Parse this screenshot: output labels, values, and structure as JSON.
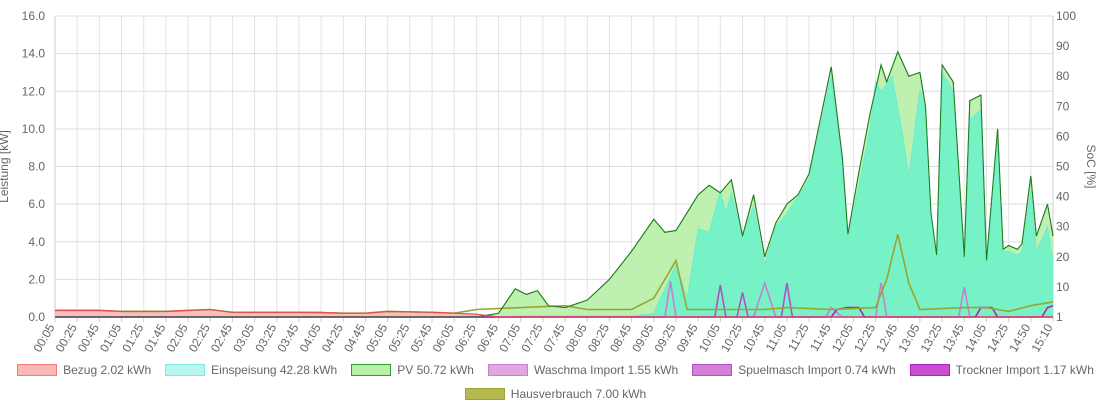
{
  "chart_data": {
    "type": "line",
    "x_axis": {
      "tick_labels": [
        "00:05",
        "00:25",
        "00:45",
        "01:05",
        "01:25",
        "01:45",
        "02:05",
        "02:25",
        "02:45",
        "03:05",
        "03:25",
        "03:45",
        "04:05",
        "04:25",
        "04:45",
        "05:05",
        "05:25",
        "05:45",
        "06:05",
        "06:25",
        "06:45",
        "07:05",
        "07:25",
        "07:45",
        "08:05",
        "08:25",
        "08:45",
        "09:05",
        "09:25",
        "09:45",
        "10:05",
        "10:25",
        "10:45",
        "11:05",
        "11:25",
        "11:45",
        "12:05",
        "12:25",
        "12:45",
        "13:05",
        "13:25",
        "13:45",
        "14:05",
        "14:25",
        "14:50",
        "15:10"
      ]
    },
    "y_left": {
      "label": "Leistung [kW]",
      "ylim": [
        0,
        16
      ],
      "tick_labels": [
        "0.0",
        "2.0",
        "4.0",
        "6.0",
        "8.0",
        "10.0",
        "12.0",
        "14.0",
        "16.0"
      ]
    },
    "y_right": {
      "label": "SoC [%]",
      "tick_labels": [
        "1",
        "10",
        "20",
        "30",
        "40",
        "50",
        "60",
        "70",
        "80",
        "90",
        "100"
      ]
    },
    "grid": true,
    "legend_position": "bottom",
    "series": [
      {
        "name": "Bezug 2.02 kWh",
        "color": "#f47c7c",
        "fill": "#f9b8b4",
        "type": "area",
        "points": [
          [
            "00:05",
            0.35
          ],
          [
            "00:45",
            0.35
          ],
          [
            "01:05",
            0.3
          ],
          [
            "01:45",
            0.3
          ],
          [
            "02:05",
            0.35
          ],
          [
            "02:25",
            0.4
          ],
          [
            "02:45",
            0.25
          ],
          [
            "03:05",
            0.25
          ],
          [
            "03:45",
            0.25
          ],
          [
            "04:05",
            0.25
          ],
          [
            "04:25",
            0.2
          ],
          [
            "04:45",
            0.2
          ],
          [
            "05:05",
            0.3
          ],
          [
            "05:45",
            0.25
          ],
          [
            "06:05",
            0.2
          ],
          [
            "06:25",
            0.15
          ],
          [
            "06:45",
            0.0
          ],
          [
            "15:10",
            0.0
          ]
        ]
      },
      {
        "name": "Einspeisung 42.28 kWh",
        "color": "#7de8e2",
        "fill": "#b9f6f0",
        "type": "area",
        "points": [
          [
            "00:05",
            0
          ],
          [
            "06:45",
            0
          ],
          [
            "07:05",
            0.05
          ],
          [
            "08:45",
            0.05
          ],
          [
            "09:05",
            0.2
          ],
          [
            "09:25",
            2.8
          ],
          [
            "09:35",
            1.0
          ],
          [
            "09:45",
            4.7
          ],
          [
            "09:55",
            4.5
          ],
          [
            "10:05",
            6.7
          ],
          [
            "10:10",
            5.5
          ],
          [
            "10:15",
            6.6
          ],
          [
            "10:25",
            4.3
          ],
          [
            "10:35",
            5.9
          ],
          [
            "10:45",
            2.8
          ],
          [
            "10:55",
            4.8
          ],
          [
            "11:05",
            5.5
          ],
          [
            "11:15",
            6.4
          ],
          [
            "11:25",
            7.3
          ],
          [
            "11:45",
            12.8
          ],
          [
            "11:55",
            8.0
          ],
          [
            "12:00",
            4.2
          ],
          [
            "12:10",
            7.0
          ],
          [
            "12:20",
            10.0
          ],
          [
            "12:25",
            12.5
          ],
          [
            "12:30",
            12.0
          ],
          [
            "12:40",
            12.8
          ],
          [
            "12:50",
            9.5
          ],
          [
            "12:55",
            7.5
          ],
          [
            "13:05",
            12.1
          ],
          [
            "13:10",
            11.0
          ],
          [
            "13:15",
            5.5
          ],
          [
            "13:20",
            3.2
          ],
          [
            "13:25",
            13.0
          ],
          [
            "13:35",
            12.0
          ],
          [
            "13:45",
            3.2
          ],
          [
            "13:50",
            10.5
          ],
          [
            "14:00",
            11.0
          ],
          [
            "14:05",
            2.8
          ],
          [
            "14:15",
            9.6
          ],
          [
            "14:20",
            3.5
          ],
          [
            "14:25",
            3.5
          ],
          [
            "14:35",
            3.3
          ],
          [
            "14:40",
            3.5
          ],
          [
            "14:50",
            6.7
          ],
          [
            "14:55",
            3.5
          ],
          [
            "15:05",
            4.8
          ],
          [
            "15:10",
            3.0
          ]
        ]
      },
      {
        "name": "PV 50.72 kWh",
        "color": "#2e9e2e",
        "fill": "#b7f0a6",
        "type": "area",
        "points": [
          [
            "00:05",
            0
          ],
          [
            "06:25",
            0
          ],
          [
            "06:45",
            0.2
          ],
          [
            "07:00",
            1.5
          ],
          [
            "07:10",
            1.2
          ],
          [
            "07:20",
            1.4
          ],
          [
            "07:30",
            0.6
          ],
          [
            "07:45",
            0.5
          ],
          [
            "08:05",
            0.9
          ],
          [
            "08:25",
            2.0
          ],
          [
            "08:45",
            3.5
          ],
          [
            "09:05",
            5.2
          ],
          [
            "09:15",
            4.5
          ],
          [
            "09:25",
            4.6
          ],
          [
            "09:45",
            6.5
          ],
          [
            "09:55",
            7.0
          ],
          [
            "10:05",
            6.6
          ],
          [
            "10:15",
            7.3
          ],
          [
            "10:25",
            4.3
          ],
          [
            "10:35",
            6.5
          ],
          [
            "10:45",
            3.2
          ],
          [
            "10:55",
            5.0
          ],
          [
            "11:05",
            6.0
          ],
          [
            "11:15",
            6.5
          ],
          [
            "11:25",
            7.6
          ],
          [
            "11:45",
            13.3
          ],
          [
            "11:55",
            8.5
          ],
          [
            "12:00",
            4.4
          ],
          [
            "12:10",
            7.7
          ],
          [
            "12:20",
            10.8
          ],
          [
            "12:30",
            13.4
          ],
          [
            "12:35",
            12.5
          ],
          [
            "12:45",
            14.1
          ],
          [
            "12:55",
            12.8
          ],
          [
            "13:05",
            13.0
          ],
          [
            "13:10",
            11.2
          ],
          [
            "13:15",
            5.5
          ],
          [
            "13:20",
            3.3
          ],
          [
            "13:25",
            13.4
          ],
          [
            "13:35",
            12.5
          ],
          [
            "13:45",
            3.2
          ],
          [
            "13:50",
            11.5
          ],
          [
            "14:00",
            11.8
          ],
          [
            "14:05",
            3.0
          ],
          [
            "14:15",
            10.0
          ],
          [
            "14:20",
            3.6
          ],
          [
            "14:25",
            3.8
          ],
          [
            "14:35",
            3.6
          ],
          [
            "14:40",
            3.9
          ],
          [
            "14:50",
            7.5
          ],
          [
            "14:55",
            4.3
          ],
          [
            "15:05",
            6.0
          ],
          [
            "15:10",
            4.3
          ]
        ]
      },
      {
        "name": "Waschma Import 1.55 kWh",
        "color": "#c77fd0",
        "fill": "#e0a6df",
        "type": "line",
        "points": [
          [
            "00:05",
            0
          ],
          [
            "09:15",
            0
          ],
          [
            "09:20",
            1.9
          ],
          [
            "09:25",
            0
          ],
          [
            "10:35",
            0
          ],
          [
            "10:45",
            1.8
          ],
          [
            "10:55",
            0
          ],
          [
            "11:40",
            0
          ],
          [
            "11:45",
            0.5
          ],
          [
            "11:55",
            0
          ],
          [
            "12:25",
            0
          ],
          [
            "12:30",
            1.8
          ],
          [
            "12:35",
            0
          ],
          [
            "13:40",
            0
          ],
          [
            "13:45",
            1.6
          ],
          [
            "13:50",
            0
          ],
          [
            "15:10",
            0
          ]
        ]
      },
      {
        "name": "Spuelmasch Import 0.74 kWh",
        "color": "#b050c8",
        "fill": "#d27fd6",
        "type": "line",
        "points": [
          [
            "00:05",
            0
          ],
          [
            "10:00",
            0
          ],
          [
            "10:05",
            1.7
          ],
          [
            "10:10",
            0
          ],
          [
            "10:20",
            0
          ],
          [
            "10:25",
            1.3
          ],
          [
            "10:30",
            0
          ],
          [
            "11:00",
            0
          ],
          [
            "11:05",
            1.8
          ],
          [
            "11:10",
            0
          ],
          [
            "15:10",
            0
          ]
        ]
      },
      {
        "name": "Trockner Import 1.17 kWh",
        "color": "#b020c0",
        "fill": "#c94ed0",
        "type": "line",
        "points": [
          [
            "00:05",
            0
          ],
          [
            "11:45",
            0
          ],
          [
            "11:50",
            0.4
          ],
          [
            "12:00",
            0.5
          ],
          [
            "12:10",
            0.5
          ],
          [
            "12:15",
            0
          ],
          [
            "13:55",
            0
          ],
          [
            "14:00",
            0.5
          ],
          [
            "14:10",
            0.5
          ],
          [
            "14:15",
            0
          ],
          [
            "15:00",
            0
          ],
          [
            "15:05",
            0.5
          ],
          [
            "15:10",
            0.6
          ]
        ]
      },
      {
        "name": "Hausverbrauch 7.00 kWh",
        "color": "#9aa530",
        "fill": "#b8b850",
        "type": "line",
        "points": [
          [
            "00:05",
            0.35
          ],
          [
            "00:45",
            0.35
          ],
          [
            "01:05",
            0.3
          ],
          [
            "01:45",
            0.3
          ],
          [
            "02:05",
            0.35
          ],
          [
            "02:25",
            0.4
          ],
          [
            "02:45",
            0.25
          ],
          [
            "03:45",
            0.25
          ],
          [
            "04:25",
            0.2
          ],
          [
            "04:45",
            0.2
          ],
          [
            "05:05",
            0.3
          ],
          [
            "05:45",
            0.25
          ],
          [
            "06:05",
            0.2
          ],
          [
            "06:25",
            0.4
          ],
          [
            "07:05",
            0.5
          ],
          [
            "07:45",
            0.6
          ],
          [
            "08:05",
            0.4
          ],
          [
            "08:45",
            0.4
          ],
          [
            "09:05",
            1.0
          ],
          [
            "09:20",
            2.5
          ],
          [
            "09:25",
            3.0
          ],
          [
            "09:35",
            0.4
          ],
          [
            "10:45",
            0.4
          ],
          [
            "11:05",
            0.5
          ],
          [
            "11:45",
            0.4
          ],
          [
            "12:25",
            0.5
          ],
          [
            "12:35",
            2.0
          ],
          [
            "12:45",
            4.4
          ],
          [
            "12:55",
            1.8
          ],
          [
            "13:05",
            0.4
          ],
          [
            "13:45",
            0.5
          ],
          [
            "14:05",
            0.5
          ],
          [
            "14:25",
            0.3
          ],
          [
            "14:50",
            0.6
          ],
          [
            "15:10",
            0.8
          ]
        ]
      }
    ]
  }
}
